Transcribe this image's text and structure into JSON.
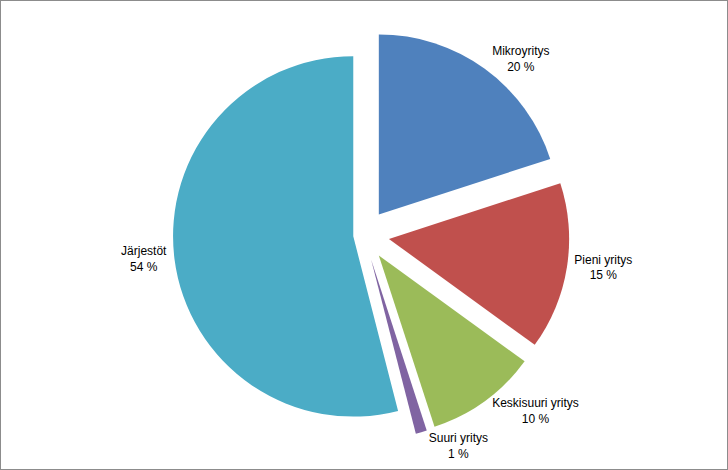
{
  "chart_data": {
    "type": "pie",
    "categories": [
      "Mikroyritys",
      "Pieni yritys",
      "Keskisuuri yritys",
      "Suuri yritys",
      "Järjestöt"
    ],
    "values": [
      20,
      15,
      10,
      1,
      54
    ],
    "value_labels": [
      "20 %",
      "15 %",
      "10 %",
      "1 %",
      "54 %"
    ],
    "colors": [
      "#4f81bd",
      "#c0504d",
      "#9bbb59",
      "#8064a2",
      "#4bacc6"
    ],
    "data_labels": true
  }
}
